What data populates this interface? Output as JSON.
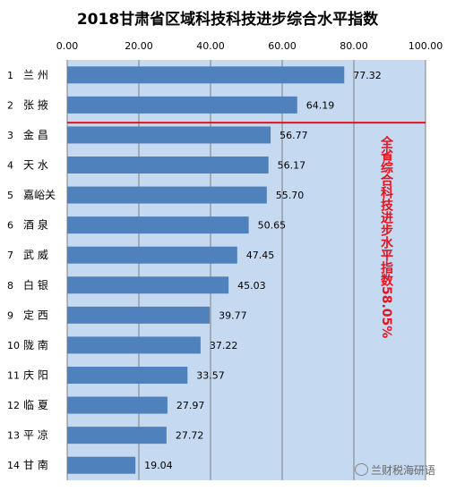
{
  "chart_data": {
    "type": "bar",
    "orientation": "horizontal",
    "title": "2018甘肃省区域科技科技进步综合水平指数",
    "xlim": [
      0,
      100
    ],
    "x_ticks": [
      "0.00",
      "20.00",
      "40.00",
      "60.00",
      "80.00",
      "100.00"
    ],
    "x_axis_position": "top",
    "grid": true,
    "categories": [
      {
        "rank": "1",
        "name": "兰 州"
      },
      {
        "rank": "2",
        "name": "张 掖"
      },
      {
        "rank": "3",
        "name": "金 昌"
      },
      {
        "rank": "4",
        "name": "天 水"
      },
      {
        "rank": "5",
        "name": "嘉峪关"
      },
      {
        "rank": "6",
        "name": "酒 泉"
      },
      {
        "rank": "7",
        "name": "武 威"
      },
      {
        "rank": "8",
        "name": "白 银"
      },
      {
        "rank": "9",
        "name": "定 西"
      },
      {
        "rank": "10",
        "name": "陇 南"
      },
      {
        "rank": "11",
        "name": "庆 阳"
      },
      {
        "rank": "12",
        "name": "临 夏"
      },
      {
        "rank": "13",
        "name": "平 凉"
      },
      {
        "rank": "14",
        "name": "甘 南"
      }
    ],
    "values": [
      77.32,
      64.19,
      56.77,
      56.17,
      55.7,
      50.65,
      47.45,
      45.03,
      39.77,
      37.22,
      33.57,
      27.97,
      27.72,
      19.04
    ],
    "value_labels": [
      "77.32",
      "64.19",
      "56.77",
      "56.17",
      "55.70",
      "50.65",
      "47.45",
      "45.03",
      "39.77",
      "37.22",
      "33.57",
      "27.97",
      "27.72",
      "19.04"
    ],
    "reference_line": {
      "after_rank": 2,
      "annotation": "全省综合科技进步水平指数58.05%",
      "color": "#e8121e"
    },
    "colors": {
      "bar": "#4f81bd",
      "plot_background": "#c5d9f1",
      "grid": "#808080"
    }
  },
  "watermark": "兰财税海研语"
}
